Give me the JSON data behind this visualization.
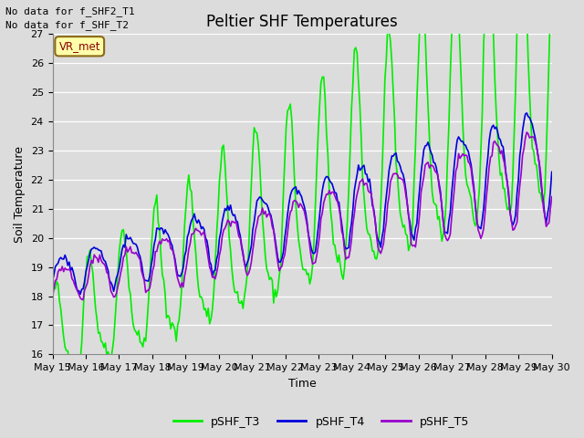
{
  "title": "Peltier SHF Temperatures",
  "xlabel": "Time",
  "ylabel": "Soil Temperature",
  "ylim": [
    16.0,
    27.0
  ],
  "yticks": [
    16.0,
    17.0,
    18.0,
    19.0,
    20.0,
    21.0,
    22.0,
    23.0,
    24.0,
    25.0,
    26.0,
    27.0
  ],
  "bg_color": "#dcdcdc",
  "annotations": [
    "No data for f_SHF2_T1",
    "No data for f_SHF_T2"
  ],
  "legend_label": "VR_met",
  "xtick_labels": [
    "May 15",
    "May 16",
    "May 17",
    "May 18",
    "May 19",
    "May 20",
    "May 21",
    "May 22",
    "May 23",
    "May 24",
    "May 25",
    "May 26",
    "May 27",
    "May 28",
    "May 29",
    "May 30"
  ],
  "series_colors": [
    "#00ee00",
    "#0000dd",
    "#9900cc"
  ],
  "series_labels": [
    "pSHF_T3",
    "pSHF_T4",
    "pSHF_T5"
  ],
  "line_width": 1.2,
  "title_fontsize": 12,
  "axis_fontsize": 9,
  "tick_fontsize": 8
}
